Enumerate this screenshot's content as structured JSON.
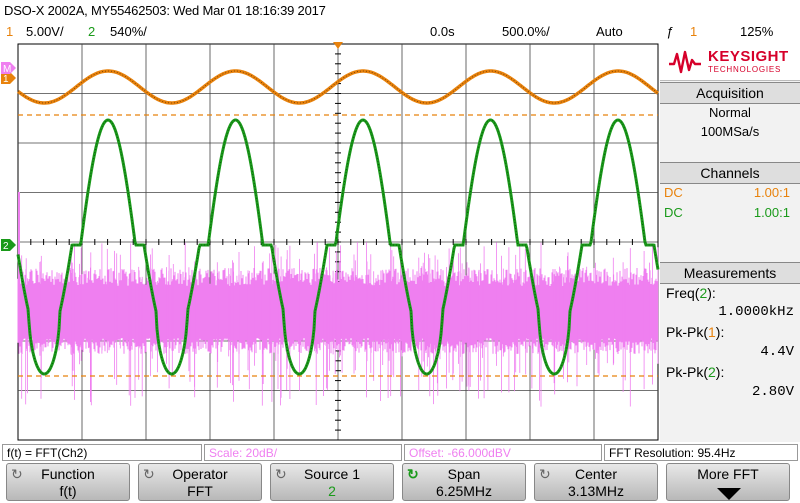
{
  "header": {
    "title": "DSO-X 2002A, MY55462503: Wed Mar 01 18:16:39 2017"
  },
  "status": {
    "ch1_num": "1",
    "ch1_scale": "5.00V/",
    "ch2_num": "2",
    "ch2_scale": "540%/",
    "time_delay": "0.0s",
    "time_scale": "500.0%/",
    "trigger_mode": "Auto",
    "trigger_slope": "ƒ",
    "trigger_source": "1",
    "trigger_level": "125%"
  },
  "brand": {
    "name": "KEYSIGHT",
    "sub": "TECHNOLOGIES"
  },
  "acquisition": {
    "title": "Acquisition",
    "mode": "Normal",
    "rate": "100MSa/s"
  },
  "channels": {
    "title": "Channels",
    "ch1_coupling": "DC",
    "ch1_probe": "1.00:1",
    "ch2_coupling": "DC",
    "ch2_probe": "1.00:1"
  },
  "measurements": {
    "title": "Measurements",
    "m1_label_pre": "Freq(",
    "m1_src": "2",
    "m1_label_post": "):",
    "m1_value": "1.0000kHz",
    "m2_label_pre": "Pk-Pk(",
    "m2_src": "1",
    "m2_label_post": "):",
    "m2_value": "4.4V",
    "m3_label_pre": "Pk-Pk(",
    "m3_src": "2",
    "m3_label_post": "):",
    "m3_value": "2.80V"
  },
  "math_status": {
    "function": "f(t) = FFT(Ch2)",
    "scale": "Scale: 20dB/",
    "offset": "Offset: -66.000dBV",
    "resolution": "FFT Resolution: 95.4Hz"
  },
  "softkeys": [
    {
      "label": "Function",
      "value": "f(t)"
    },
    {
      "label": "Operator",
      "value": "FFT"
    },
    {
      "label": "Source 1",
      "value": "2"
    },
    {
      "label": "Span",
      "value": "6.25MHz"
    },
    {
      "label": "Center",
      "value": "3.13MHz"
    },
    {
      "label": "More FFT",
      "value": ""
    }
  ],
  "markers": {
    "ch1": "1",
    "ch2": "2",
    "math": "M"
  },
  "colors": {
    "ch1": "#e8820c",
    "ch2": "#1a9a1a",
    "math": "#ef7ff0",
    "grid": "#000000",
    "cursor": "#e8820c"
  }
}
